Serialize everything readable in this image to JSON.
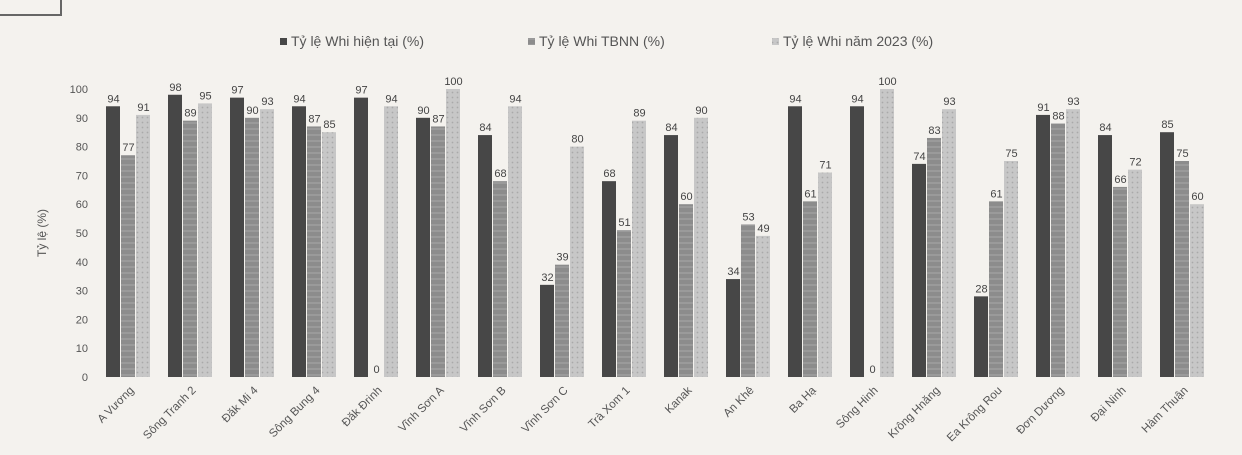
{
  "chart_data": {
    "type": "bar",
    "ylabel": "Tỷ lệ (%)",
    "ylim": [
      0,
      100
    ],
    "yticks": [
      "0",
      "10",
      "20",
      "30",
      "40",
      "50",
      "60",
      "70",
      "80",
      "90",
      "100"
    ],
    "legend_position": "top",
    "grid": false,
    "categories": [
      "A Vương",
      "Sông Tranh 2",
      "Đăk Mi 4",
      "Sông Bung 4",
      "Đăk Đrinh",
      "Vĩnh Sơn A",
      "Vĩnh Sơn B",
      "Vĩnh Sơn C",
      "Trà Xom 1",
      "Kanak",
      "An Khê",
      "Ba Hạ",
      "Sông Hinh",
      "Krông Hnăng",
      "Ea Krông Rou",
      "Đơn Dương",
      "Đại Ninh",
      "Hàm Thuận"
    ],
    "series": [
      {
        "name": "Tỷ lệ Whi hiện tại (%)",
        "color": "#4a4a4a",
        "values": [
          94,
          98,
          97,
          94,
          97,
          90,
          84,
          32,
          68,
          84,
          34,
          94,
          94,
          74,
          28,
          91,
          84,
          85
        ]
      },
      {
        "name": "Tỷ lệ Whi TBNN (%)",
        "color": "#8a8a8a",
        "values": [
          77,
          89,
          90,
          87,
          0,
          87,
          68,
          39,
          51,
          60,
          53,
          61,
          0,
          83,
          61,
          88,
          66,
          75
        ]
      },
      {
        "name": "Tỷ lệ Whi năm 2023 (%)",
        "color": "#c4c4c4",
        "values": [
          91,
          95,
          93,
          85,
          94,
          100,
          94,
          80,
          89,
          90,
          49,
          71,
          100,
          93,
          75,
          93,
          72,
          60
        ]
      }
    ]
  }
}
